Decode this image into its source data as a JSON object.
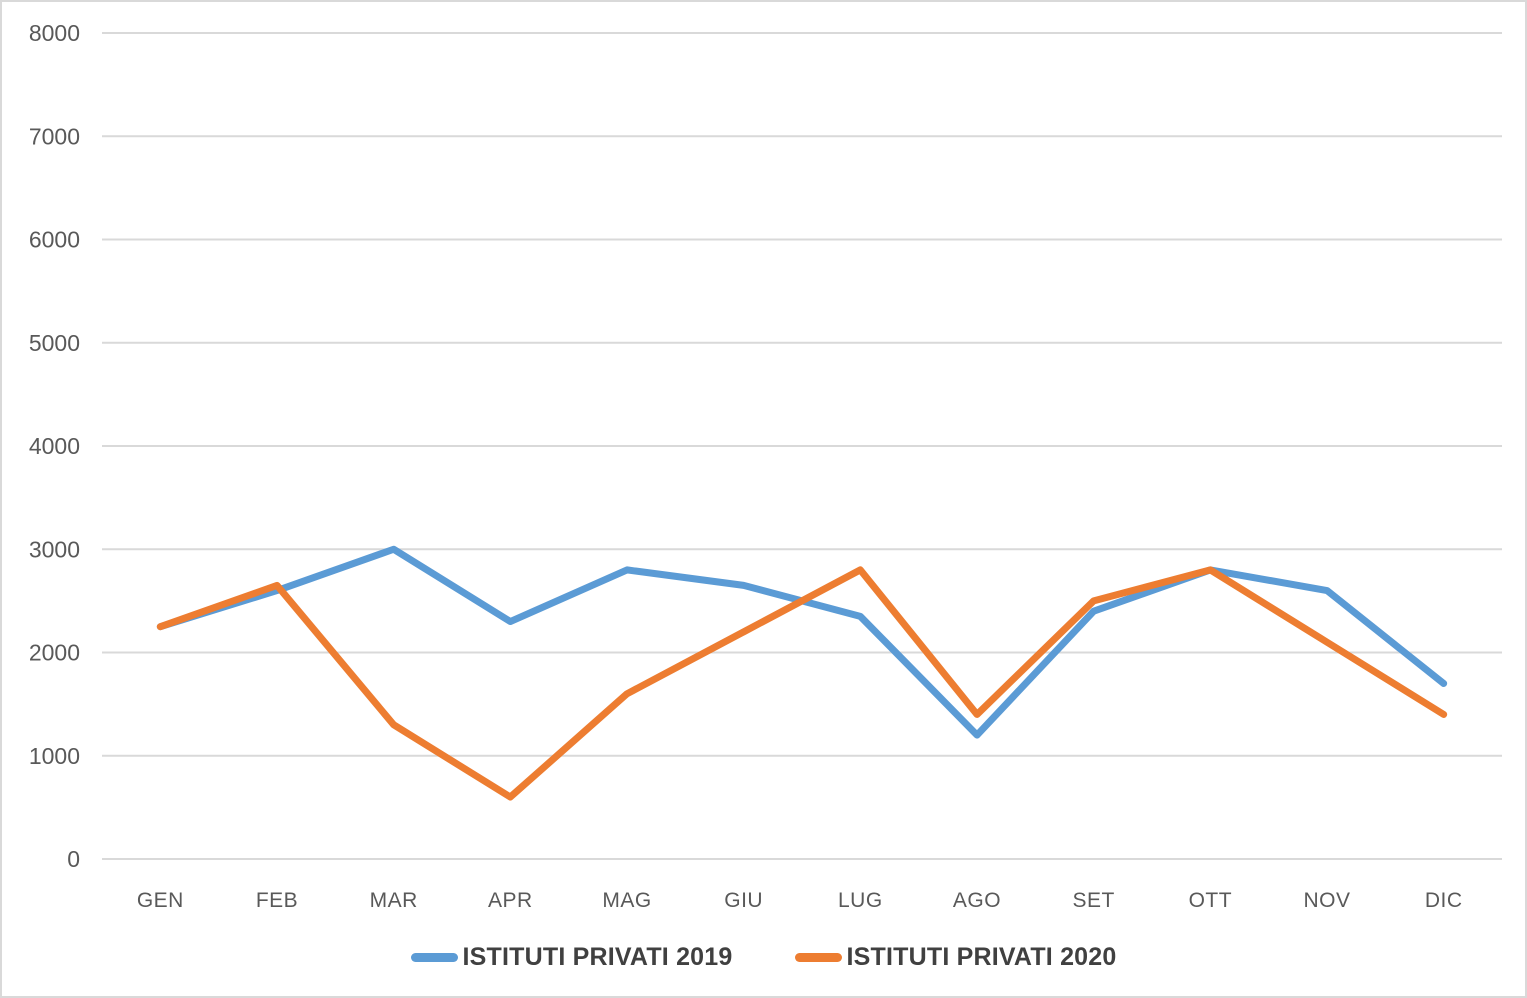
{
  "chart_data": {
    "type": "line",
    "title": "",
    "xlabel": "",
    "ylabel": "",
    "categories": [
      "GEN",
      "FEB",
      "MAR",
      "APR",
      "MAG",
      "GIU",
      "LUG",
      "AGO",
      "SET",
      "OTT",
      "NOV",
      "DIC"
    ],
    "series": [
      {
        "name": "ISTITUTI PRIVATI 2019",
        "color": "#5B9BD5",
        "values": [
          2250,
          2600,
          3000,
          2300,
          2800,
          2650,
          2350,
          1200,
          2400,
          2800,
          2600,
          1700
        ]
      },
      {
        "name": "ISTITUTI PRIVATI 2020",
        "color": "#ED7D31",
        "values": [
          2250,
          2650,
          1300,
          600,
          1600,
          2200,
          2800,
          1400,
          2500,
          2800,
          2100,
          1400
        ]
      }
    ],
    "ylim": [
      0,
      8000
    ],
    "yticks": [
      0,
      1000,
      2000,
      3000,
      4000,
      5000,
      6000,
      7000,
      8000
    ],
    "grid": true,
    "legend_position": "bottom"
  },
  "style": {
    "grid_color": "#D9D9D9",
    "tick_text_color": "#595959",
    "legend_text_color": "#404040",
    "background_color": "#FFFFFF",
    "frame_border_color": "#D9D9D9",
    "line_width": 7
  }
}
